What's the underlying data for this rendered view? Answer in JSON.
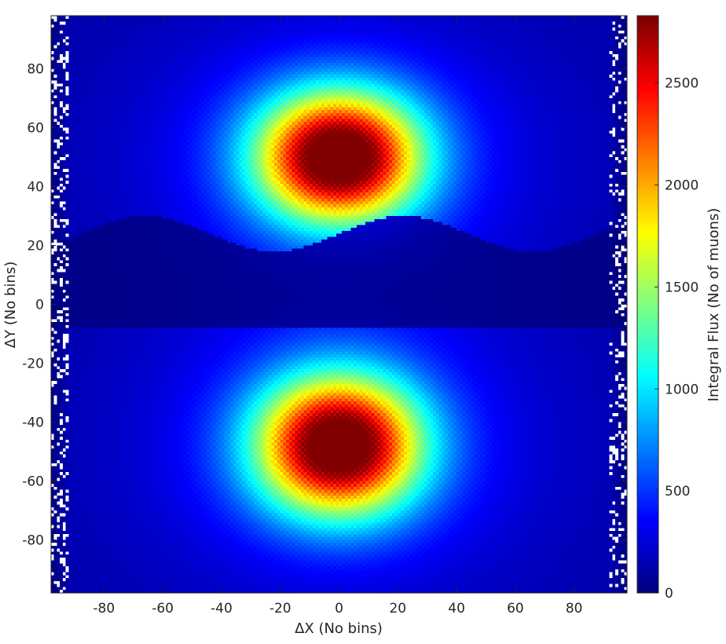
{
  "chart_data": {
    "type": "heatmap",
    "title": "",
    "xlabel": "ΔX (No bins)",
    "ylabel": "ΔY (No bins)",
    "colorbar_label": "Integral Flux (No of muons)",
    "colormap": "jet",
    "xlim": [
      -98,
      98
    ],
    "ylim": [
      -98,
      98
    ],
    "clim": [
      0,
      2830
    ],
    "x_ticks": [
      -80,
      -60,
      -40,
      -20,
      0,
      20,
      40,
      60,
      80
    ],
    "x_tick_labels": [
      "-80",
      "-60",
      "-40",
      "-20",
      "0",
      "20",
      "40",
      "60",
      "80"
    ],
    "y_ticks": [
      80,
      60,
      40,
      20,
      0,
      -20,
      -40,
      -60,
      -80
    ],
    "y_tick_labels": [
      "80",
      "60",
      "40",
      "20",
      "0",
      "-20",
      "-40",
      "-60",
      "-80"
    ],
    "colorbar_ticks": [
      0,
      500,
      1000,
      1500,
      2000,
      2500
    ],
    "colorbar_tick_labels": [
      "0",
      "500",
      "1000",
      "1500",
      "2000",
      "2500"
    ],
    "grid": false,
    "blobs": [
      {
        "name": "upper",
        "center": [
          0,
          50
        ],
        "peak": 2800,
        "sigma_x": 19,
        "sigma_y": 15
      },
      {
        "name": "lower",
        "center": [
          0,
          -48
        ],
        "peak": 2780,
        "sigma_x": 19,
        "sigma_y": 16
      }
    ],
    "background_level": 120,
    "shadow_band_y": [
      0,
      20
    ],
    "colors": {
      "low": "#00008f",
      "mid": "#00ffff",
      "high": "#800000",
      "background": "#ffffff",
      "axis": "#262626"
    }
  }
}
